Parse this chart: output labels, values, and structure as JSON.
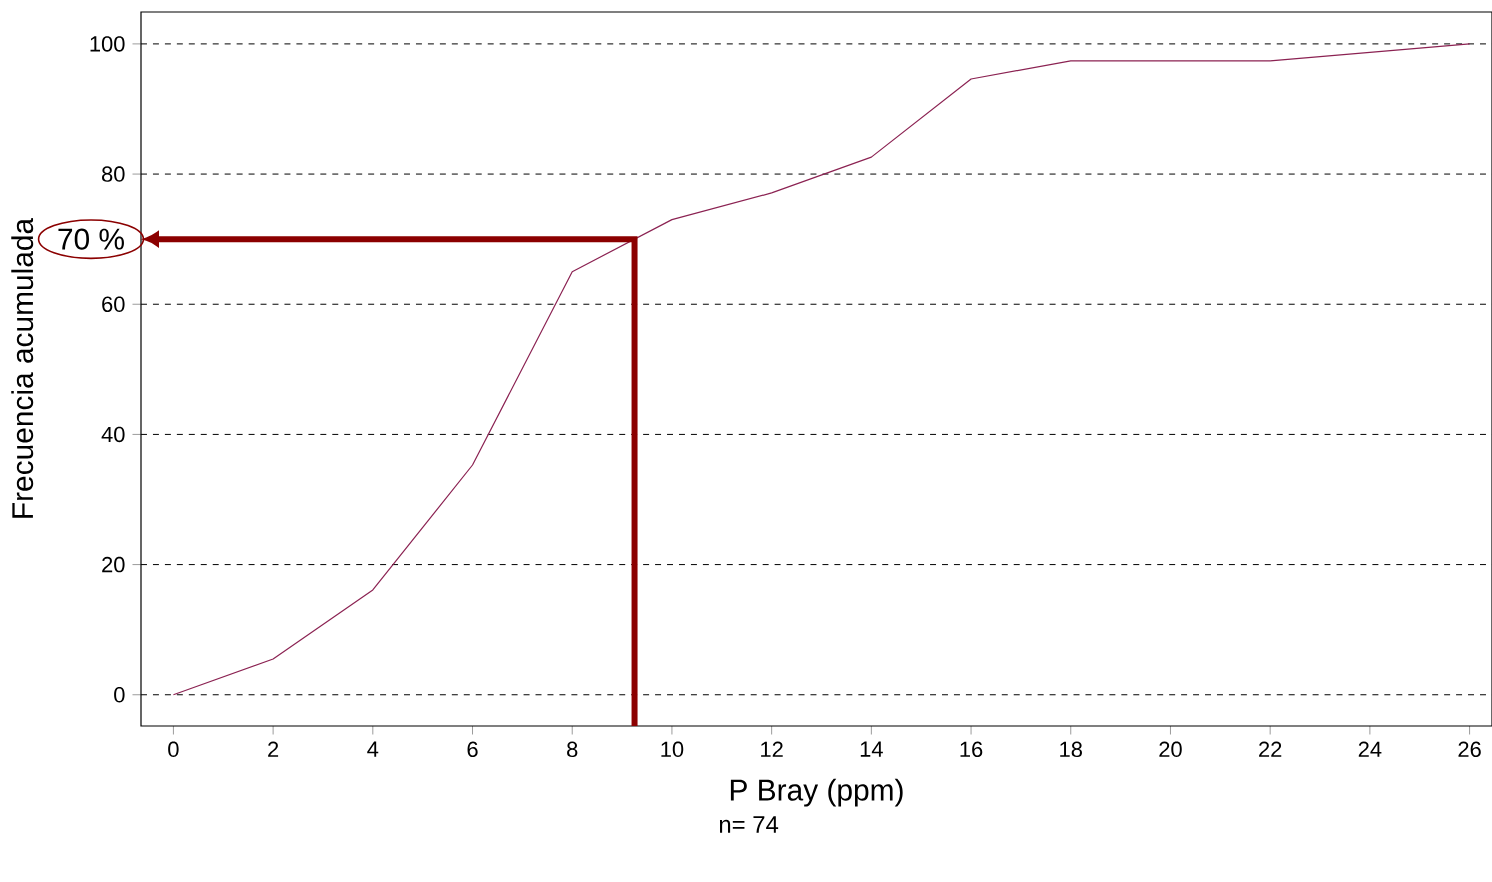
{
  "chart_data": {
    "type": "line",
    "xlabel": "P Bray (ppm)",
    "ylabel": "Frecuencia acumulada",
    "x": [
      0,
      2,
      4,
      6,
      8,
      10,
      12,
      14,
      16,
      18,
      20,
      22,
      26
    ],
    "series": [
      {
        "color": "#8b2252",
        "values": [
          0,
          5.5,
          16.1,
          35.3,
          65.0,
          73.0,
          77.1,
          82.6,
          94.6,
          97.4,
          97.4,
          97.4,
          100
        ]
      }
    ],
    "xlim": [
      -0.65,
      26.45
    ],
    "ylim": [
      -4.8,
      104.9
    ],
    "xticks": [
      0,
      2,
      4,
      6,
      8,
      10,
      12,
      14,
      16,
      18,
      20,
      22,
      24,
      26
    ],
    "yticks": [
      0,
      20,
      40,
      60,
      80,
      100
    ],
    "grid": "y",
    "ref_lines": [
      {
        "axis": "y",
        "value": 70,
        "label": "70 %",
        "color": "#8b0000"
      }
    ],
    "annotations": [
      "n= 74"
    ]
  }
}
